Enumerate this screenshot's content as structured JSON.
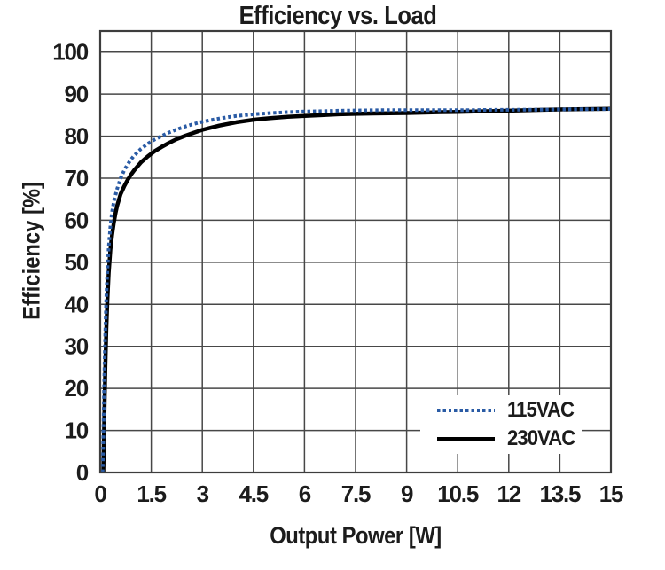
{
  "chart_data": {
    "type": "line",
    "title": "Efficiency vs. Load",
    "xlabel": "Output Power [W]",
    "ylabel": "Efficiency [%]",
    "xlim": [
      0,
      15
    ],
    "ylim": [
      0,
      105
    ],
    "x_ticks": [
      0,
      1.5,
      3,
      4.5,
      6,
      7.5,
      9,
      10.5,
      12,
      13.5,
      15
    ],
    "x_tick_labels": [
      "0",
      "1.5",
      "3",
      "4.5",
      "6",
      "7.5",
      "9",
      "10.5",
      "12",
      "13.5",
      "15"
    ],
    "y_ticks": [
      0,
      10,
      20,
      30,
      40,
      50,
      60,
      70,
      80,
      90,
      100
    ],
    "y_tick_labels": [
      "0",
      "10",
      "20",
      "30",
      "40",
      "50",
      "60",
      "70",
      "80",
      "90",
      "100"
    ],
    "grid": true,
    "grid_color": "#474747",
    "border_color": "#3d3d3d",
    "text_color": "#1c1c1c",
    "background_color": "#ffffff",
    "legend_position": "lower right",
    "series": [
      {
        "name": "115VAC",
        "color": "#2a5ba5",
        "style": "dotted",
        "line_width": 4,
        "points": [
          [
            0.07,
            0
          ],
          [
            0.09,
            8
          ],
          [
            0.11,
            18
          ],
          [
            0.13,
            27
          ],
          [
            0.15,
            34
          ],
          [
            0.18,
            42
          ],
          [
            0.21,
            48
          ],
          [
            0.25,
            53.5
          ],
          [
            0.3,
            58.5
          ],
          [
            0.35,
            62
          ],
          [
            0.4,
            64.5
          ],
          [
            0.45,
            66
          ],
          [
            0.5,
            67.5
          ],
          [
            0.6,
            70
          ],
          [
            0.7,
            71.8
          ],
          [
            0.8,
            73.2
          ],
          [
            0.9,
            74.4
          ],
          [
            1.0,
            75.4
          ],
          [
            1.2,
            77
          ],
          [
            1.4,
            78.2
          ],
          [
            1.6,
            79.2
          ],
          [
            1.8,
            80
          ],
          [
            2.0,
            80.8
          ],
          [
            2.25,
            81.6
          ],
          [
            2.5,
            82.3
          ],
          [
            2.75,
            82.9
          ],
          [
            3.0,
            83.4
          ],
          [
            3.25,
            83.8
          ],
          [
            3.5,
            84.2
          ],
          [
            3.75,
            84.5
          ],
          [
            4.0,
            84.8
          ],
          [
            4.25,
            85.0
          ],
          [
            4.5,
            85.2
          ],
          [
            4.75,
            85.35
          ],
          [
            5.0,
            85.5
          ],
          [
            5.5,
            85.7
          ],
          [
            6.0,
            85.85
          ],
          [
            6.5,
            85.95
          ],
          [
            7.0,
            86.05
          ],
          [
            7.5,
            86.1
          ],
          [
            8.0,
            86.15
          ],
          [
            8.5,
            86.2
          ],
          [
            9.0,
            86.2
          ],
          [
            9.5,
            86.2
          ],
          [
            10.0,
            86.2
          ],
          [
            10.5,
            86.2
          ],
          [
            11.0,
            86.2
          ],
          [
            11.5,
            86.25
          ],
          [
            12.0,
            86.25
          ],
          [
            12.5,
            86.3
          ],
          [
            13.0,
            86.3
          ],
          [
            13.5,
            86.35
          ],
          [
            14.0,
            86.4
          ],
          [
            14.5,
            86.4
          ],
          [
            15.0,
            86.45
          ]
        ]
      },
      {
        "name": "230VAC",
        "color": "#000000",
        "style": "solid",
        "line_width": 4.5,
        "points": [
          [
            0.09,
            0
          ],
          [
            0.11,
            8
          ],
          [
            0.13,
            17
          ],
          [
            0.15,
            25
          ],
          [
            0.18,
            34
          ],
          [
            0.21,
            41
          ],
          [
            0.25,
            47.5
          ],
          [
            0.3,
            53
          ],
          [
            0.35,
            56.5
          ],
          [
            0.4,
            59.5
          ],
          [
            0.45,
            61.7
          ],
          [
            0.5,
            63.5
          ],
          [
            0.6,
            66.2
          ],
          [
            0.7,
            68
          ],
          [
            0.8,
            69.5
          ],
          [
            0.9,
            70.8
          ],
          [
            1.0,
            71.9
          ],
          [
            1.2,
            73.8
          ],
          [
            1.4,
            75.2
          ],
          [
            1.6,
            76.4
          ],
          [
            1.8,
            77.4
          ],
          [
            2.0,
            78.3
          ],
          [
            2.25,
            79.3
          ],
          [
            2.5,
            80.1
          ],
          [
            2.75,
            80.8
          ],
          [
            3.0,
            81.5
          ],
          [
            3.25,
            82.0
          ],
          [
            3.5,
            82.5
          ],
          [
            3.75,
            82.9
          ],
          [
            4.0,
            83.3
          ],
          [
            4.25,
            83.6
          ],
          [
            4.5,
            83.9
          ],
          [
            4.75,
            84.1
          ],
          [
            5.0,
            84.3
          ],
          [
            5.5,
            84.6
          ],
          [
            6.0,
            84.8
          ],
          [
            6.5,
            85.0
          ],
          [
            7.0,
            85.2
          ],
          [
            7.5,
            85.3
          ],
          [
            8.0,
            85.4
          ],
          [
            8.5,
            85.45
          ],
          [
            9.0,
            85.5
          ],
          [
            9.5,
            85.6
          ],
          [
            10.0,
            85.7
          ],
          [
            10.5,
            85.75
          ],
          [
            11.0,
            85.85
          ],
          [
            11.5,
            85.95
          ],
          [
            12.0,
            86.05
          ],
          [
            12.5,
            86.15
          ],
          [
            13.0,
            86.25
          ],
          [
            13.5,
            86.35
          ],
          [
            14.0,
            86.4
          ],
          [
            14.5,
            86.45
          ],
          [
            15.0,
            86.5
          ]
        ]
      }
    ]
  }
}
